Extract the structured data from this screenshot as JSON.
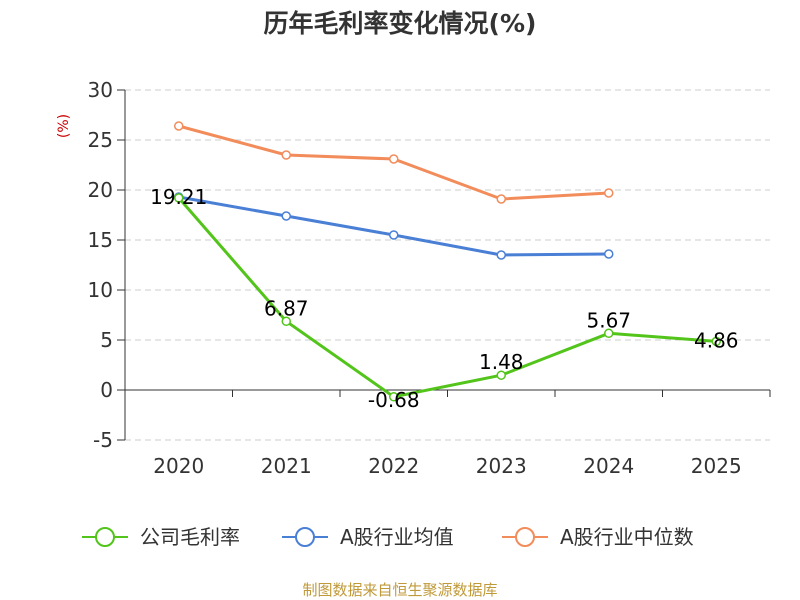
{
  "chart_data": {
    "type": "line",
    "title": "历年毛利率变化情况(%)",
    "ylabel": "(%)",
    "xlabel": "",
    "categories": [
      "2020",
      "2021",
      "2022",
      "2023",
      "2024",
      "2025"
    ],
    "ylim": [
      -5,
      30
    ],
    "yticks": [
      30,
      25,
      20,
      15,
      10,
      5,
      0,
      -5
    ],
    "grid": true,
    "series": [
      {
        "name": "公司毛利率",
        "color": "#52c41a",
        "values": [
          19.21,
          6.87,
          -0.68,
          1.48,
          5.67,
          4.86
        ],
        "labels": [
          "19.21",
          "6.87",
          "-0.68",
          "1.48",
          "5.67",
          "4.86"
        ]
      },
      {
        "name": "A股行业均值",
        "color": "#4a7fd6",
        "values": [
          19.3,
          17.4,
          15.5,
          13.5,
          13.6,
          null
        ],
        "labels": []
      },
      {
        "name": "A股行业中位数",
        "color": "#f28c5a",
        "values": [
          26.4,
          23.5,
          23.1,
          19.1,
          19.7,
          null
        ],
        "labels": []
      }
    ],
    "legend_position": "bottom",
    "source": "制图数据来自恒生聚源数据库"
  }
}
